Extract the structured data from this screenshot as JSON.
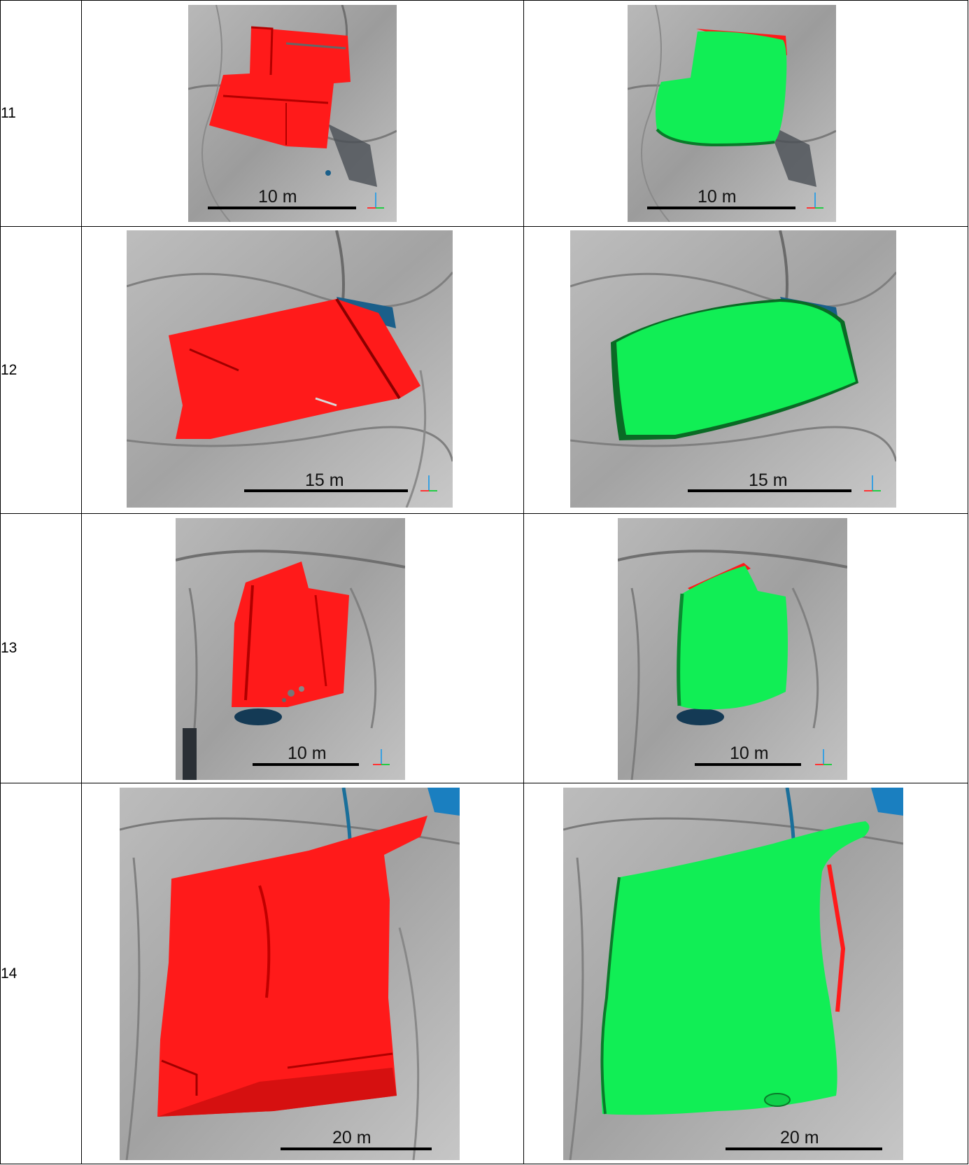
{
  "rows": [
    {
      "number": "11",
      "scale_left": "10 m",
      "scale_right": "10 m"
    },
    {
      "number": "12",
      "scale_left": "15 m",
      "scale_right": "15 m"
    },
    {
      "number": "13",
      "scale_left": "10 m",
      "scale_right": "10 m"
    },
    {
      "number": "14",
      "scale_left": "20 m",
      "scale_right": "20 m"
    }
  ],
  "colors": {
    "original_surface": "#ff1a1a",
    "fitted_surface": "#11ee55",
    "terrain": "#a9a9a9",
    "water": "#1a5f8a"
  }
}
